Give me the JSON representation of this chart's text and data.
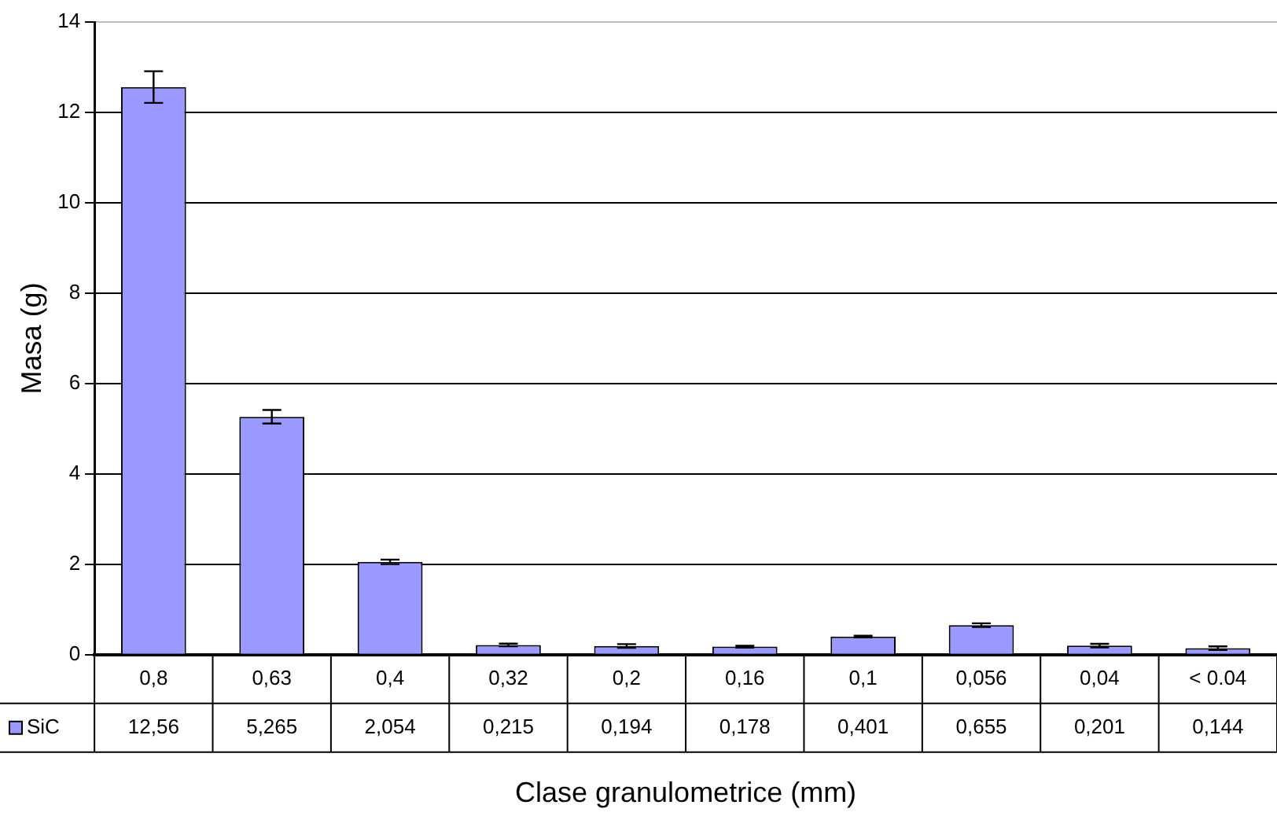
{
  "chart_data": {
    "type": "bar",
    "xlabel": "Clase granulometrice (mm)",
    "ylabel": "Masa (g)",
    "categories": [
      "0,8",
      "0,63",
      "0,4",
      "0,32",
      "0,2",
      "0,16",
      "0,1",
      "0,056",
      "0,04",
      "< 0.04"
    ],
    "series": [
      {
        "name": "SiC",
        "color": "#9999ff",
        "values": [
          12.56,
          5.265,
          2.054,
          0.215,
          0.194,
          0.178,
          0.401,
          0.655,
          0.201,
          0.144
        ],
        "errors": [
          0.35,
          0.15,
          0.05,
          0.03,
          0.04,
          0.02,
          0.02,
          0.04,
          0.04,
          0.04
        ],
        "value_labels": [
          "12,56",
          "5,265",
          "2,054",
          "0,215",
          "0,194",
          "0,178",
          "0,401",
          "0,655",
          "0,201",
          "0,144"
        ]
      }
    ],
    "ylim": [
      0,
      14
    ],
    "yticks": [
      0,
      2,
      4,
      6,
      8,
      10,
      12,
      14
    ],
    "grid": "y",
    "legend": "bottom left"
  }
}
